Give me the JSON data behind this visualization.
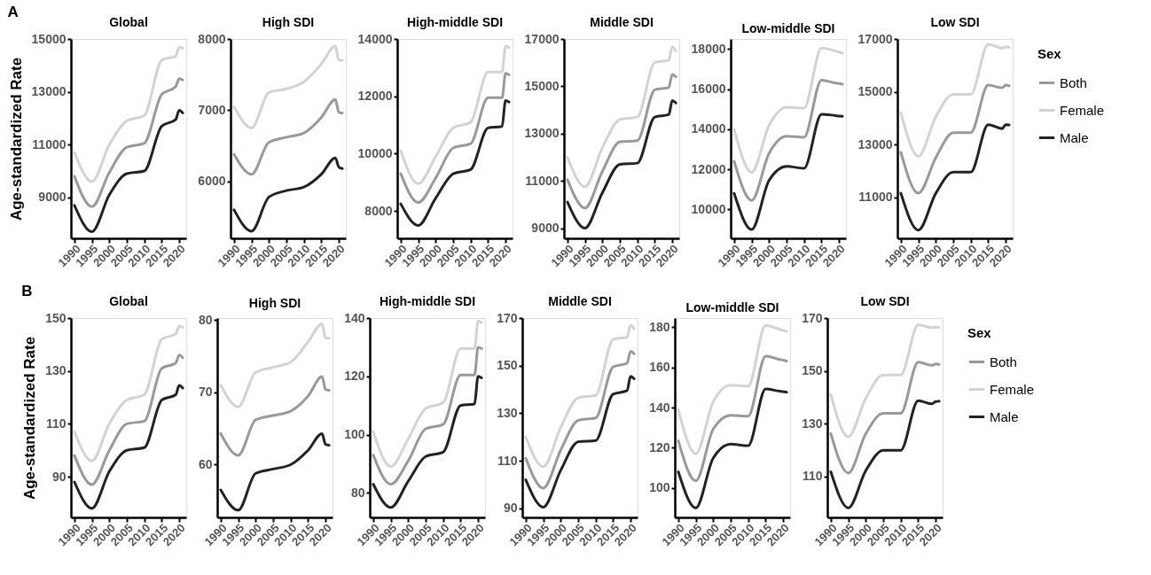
{
  "chart_data": [
    {
      "type": "line",
      "title": "Global",
      "ylabel": "Age-standardized  Rate",
      "annotations": [
        "A"
      ],
      "legend": false,
      "grid": false,
      "x": [
        1990,
        1995,
        2000,
        2005,
        2010,
        2015,
        2019,
        2020,
        2021
      ],
      "xlim": [
        1989,
        2022
      ],
      "xticks": [
        1990,
        1995,
        2000,
        2005,
        2010,
        2015,
        2020
      ],
      "ylim": [
        7450,
        15000
      ],
      "yticks": [
        9000,
        11000,
        13000,
        15000
      ],
      "series": [
        {
          "color": "#999999",
          "values": [
            9800,
            8650,
            9950,
            10900,
            11050,
            12900,
            13200,
            13500,
            13450
          ]
        },
        {
          "color": "#d3d3d3",
          "values": [
            10700,
            9600,
            11000,
            11900,
            12100,
            14200,
            14350,
            14700,
            14650
          ]
        },
        {
          "color": "#222222",
          "values": [
            8700,
            7700,
            9100,
            9900,
            10000,
            11700,
            11950,
            12300,
            12200
          ]
        }
      ]
    },
    {
      "type": "line",
      "title": "High SDI",
      "legend": false,
      "grid": false,
      "x": [
        1990,
        1995,
        2000,
        2005,
        2010,
        2015,
        2019,
        2020,
        2021
      ],
      "xlim": [
        1989,
        2022
      ],
      "xticks": [
        1990,
        1995,
        2000,
        2005,
        2010,
        2015,
        2020
      ],
      "ylim": [
        5200,
        8000
      ],
      "yticks": [
        6000,
        7000,
        8000
      ],
      "series": [
        {
          "color": "#999999",
          "values": [
            6380,
            6100,
            6550,
            6620,
            6680,
            6900,
            7150,
            6970,
            6960
          ]
        },
        {
          "color": "#d3d3d3",
          "values": [
            7050,
            6750,
            7250,
            7300,
            7400,
            7650,
            7900,
            7700,
            7700
          ]
        },
        {
          "color": "#222222",
          "values": [
            5600,
            5300,
            5780,
            5870,
            5920,
            6100,
            6330,
            6200,
            6180
          ]
        }
      ]
    },
    {
      "type": "line",
      "title": "High-middle SDI",
      "legend": false,
      "grid": false,
      "x": [
        1990,
        1995,
        2000,
        2005,
        2010,
        2015,
        2019,
        2020,
        2021
      ],
      "xlim": [
        1989,
        2022
      ],
      "xticks": [
        1990,
        1995,
        2000,
        2005,
        2010,
        2015,
        2020
      ],
      "ylim": [
        7050,
        14000
      ],
      "yticks": [
        8000,
        10000,
        12000,
        14000
      ],
      "series": [
        {
          "color": "#999999",
          "values": [
            9300,
            8300,
            9150,
            10200,
            10350,
            11950,
            11950,
            12800,
            12750
          ]
        },
        {
          "color": "#d3d3d3",
          "values": [
            10100,
            8950,
            9900,
            10900,
            11100,
            12850,
            12850,
            13750,
            13700
          ]
        },
        {
          "color": "#222222",
          "values": [
            8250,
            7500,
            8450,
            9300,
            9450,
            10900,
            10950,
            11850,
            11800
          ]
        }
      ]
    },
    {
      "type": "line",
      "title": "Middle SDI",
      "legend": false,
      "grid": false,
      "x": [
        1990,
        1995,
        2000,
        2005,
        2010,
        2015,
        2019,
        2020,
        2021
      ],
      "xlim": [
        1989,
        2022
      ],
      "xticks": [
        1990,
        1995,
        2000,
        2005,
        2010,
        2015,
        2020
      ],
      "ylim": [
        8570,
        17000
      ],
      "yticks": [
        9000,
        11000,
        13000,
        15000,
        17000
      ],
      "series": [
        {
          "color": "#999999",
          "values": [
            11050,
            9850,
            11400,
            12650,
            12700,
            14850,
            14950,
            15500,
            15400
          ]
        },
        {
          "color": "#d3d3d3",
          "values": [
            12000,
            10750,
            12400,
            13600,
            13700,
            16000,
            16100,
            16650,
            16500
          ]
        },
        {
          "color": "#222222",
          "values": [
            10100,
            9000,
            10500,
            11700,
            11750,
            13700,
            13800,
            14400,
            14300
          ]
        }
      ]
    },
    {
      "type": "line",
      "title": "Low-middle SDI",
      "legend": false,
      "grid": false,
      "x": [
        1990,
        1995,
        2000,
        2005,
        2010,
        2015,
        2019,
        2020,
        2021
      ],
      "xlim": [
        1989,
        2022
      ],
      "xticks": [
        1990,
        1995,
        2000,
        2005,
        2010,
        2015,
        2020
      ],
      "ylim": [
        8560,
        18500
      ],
      "yticks": [
        10000,
        12000,
        14000,
        16000,
        18000
      ],
      "series": [
        {
          "color": "#999999",
          "values": [
            12400,
            10450,
            12800,
            13650,
            13600,
            16450,
            16300,
            16280,
            16250
          ]
        },
        {
          "color": "#d3d3d3",
          "values": [
            14000,
            11850,
            14200,
            15100,
            15050,
            18050,
            17900,
            17850,
            17800
          ]
        },
        {
          "color": "#222222",
          "values": [
            10800,
            9000,
            11450,
            12150,
            12050,
            14750,
            14680,
            14660,
            14650
          ]
        }
      ]
    },
    {
      "type": "line",
      "title": "Low SDI",
      "legend": "right",
      "legend_title": "Sex",
      "grid": false,
      "x": [
        1990,
        1995,
        2000,
        2005,
        2010,
        2015,
        2019,
        2020,
        2021
      ],
      "xlim": [
        1989,
        2022
      ],
      "xticks": [
        1990,
        1995,
        2000,
        2005,
        2010,
        2015,
        2020
      ],
      "ylim": [
        9440,
        17000
      ],
      "yticks": [
        11000,
        13000,
        15000,
        17000
      ],
      "series": [
        {
          "name": "Both",
          "color": "#999999",
          "values": [
            12700,
            11150,
            12500,
            13450,
            13450,
            15250,
            15150,
            15250,
            15220
          ]
        },
        {
          "name": "Female",
          "color": "#d3d3d3",
          "values": [
            14200,
            12550,
            14050,
            14900,
            14900,
            16800,
            16650,
            16700,
            16680
          ]
        },
        {
          "name": "Male",
          "color": "#222222",
          "values": [
            11150,
            9750,
            11150,
            11950,
            11950,
            13750,
            13600,
            13750,
            13740
          ]
        }
      ]
    },
    {
      "type": "line",
      "title": "Global",
      "ylabel": "Age-standardized  Rate",
      "annotations": [
        "B"
      ],
      "legend": false,
      "grid": false,
      "x": [
        1990,
        1995,
        2000,
        2005,
        2010,
        2015,
        2019,
        2020,
        2021
      ],
      "xlim": [
        1989,
        2022
      ],
      "xticks": [
        1990,
        1995,
        2000,
        2005,
        2010,
        2015,
        2020
      ],
      "ylim": [
        74.6,
        150
      ],
      "yticks": [
        90,
        110,
        130,
        150
      ],
      "series": [
        {
          "color": "#999999",
          "values": [
            98,
            87,
            100,
            110,
            111,
            131,
            133,
            136,
            135
          ]
        },
        {
          "color": "#d3d3d3",
          "values": [
            107,
            96,
            110,
            119,
            121,
            142,
            144,
            147,
            146.5
          ]
        },
        {
          "color": "#222222",
          "values": [
            88,
            78,
            92,
            100,
            101,
            119,
            121,
            124.5,
            123.5
          ]
        }
      ]
    },
    {
      "type": "line",
      "title": "High SDI",
      "legend": false,
      "grid": false,
      "x": [
        1990,
        1995,
        2000,
        2005,
        2010,
        2015,
        2019,
        2020,
        2021
      ],
      "xlim": [
        1989,
        2022
      ],
      "xticks": [
        1990,
        1995,
        2000,
        2005,
        2010,
        2015,
        2020
      ],
      "ylim": [
        52.7,
        80.3
      ],
      "yticks": [
        60,
        70,
        80
      ],
      "series": [
        {
          "color": "#999999",
          "values": [
            64.3,
            61.3,
            66.2,
            66.8,
            67.4,
            69.5,
            72.2,
            70.4,
            70.3
          ]
        },
        {
          "color": "#d3d3d3",
          "values": [
            71,
            68,
            72.8,
            73.5,
            74.2,
            77,
            79.5,
            77.5,
            77.5
          ]
        },
        {
          "color": "#222222",
          "values": [
            56.5,
            53.7,
            58.8,
            59.4,
            60,
            62,
            64.3,
            62.8,
            62.7
          ]
        }
      ]
    },
    {
      "type": "line",
      "title": "High-middle SDI",
      "legend": false,
      "grid": false,
      "x": [
        1990,
        1995,
        2000,
        2005,
        2010,
        2015,
        2019,
        2020,
        2021
      ],
      "xlim": [
        1989,
        2022
      ],
      "xticks": [
        1990,
        1995,
        2000,
        2005,
        2010,
        2015,
        2020
      ],
      "ylim": [
        71.6,
        140
      ],
      "yticks": [
        80,
        100,
        120,
        140
      ],
      "series": [
        {
          "color": "#999999",
          "values": [
            93,
            83,
            91,
            102,
            103.5,
            120.5,
            120.5,
            130,
            129.5
          ]
        },
        {
          "color": "#d3d3d3",
          "values": [
            101,
            89,
            98.5,
            109,
            111,
            129.5,
            129.5,
            139,
            138.5
          ]
        },
        {
          "color": "#222222",
          "values": [
            83,
            75,
            84,
            92.5,
            94,
            110,
            110.5,
            120,
            119.5
          ]
        }
      ]
    },
    {
      "type": "line",
      "title": "Middle SDI",
      "legend": false,
      "grid": false,
      "x": [
        1990,
        1995,
        2000,
        2005,
        2010,
        2015,
        2019,
        2020,
        2021
      ],
      "xlim": [
        1989,
        2022
      ],
      "xticks": [
        1990,
        1995,
        2000,
        2005,
        2010,
        2015,
        2020
      ],
      "ylim": [
        86.2,
        170
      ],
      "yticks": [
        90,
        110,
        130,
        150,
        170
      ],
      "series": [
        {
          "color": "#999999",
          "values": [
            111,
            98.5,
            114.5,
            127,
            128,
            149.5,
            151,
            156,
            155
          ]
        },
        {
          "color": "#d3d3d3",
          "values": [
            120,
            107.5,
            124,
            136.5,
            137.5,
            161,
            162,
            167,
            165.5
          ]
        },
        {
          "color": "#222222",
          "values": [
            102,
            90.5,
            106,
            118,
            118.5,
            138,
            139.5,
            145.5,
            144.5
          ]
        }
      ]
    },
    {
      "type": "line",
      "title": "Low-middle SDI",
      "legend": false,
      "grid": false,
      "x": [
        1990,
        1995,
        2000,
        2005,
        2010,
        2015,
        2019,
        2020,
        2021
      ],
      "xlim": [
        1989,
        2022
      ],
      "xticks": [
        1990,
        1995,
        2000,
        2005,
        2010,
        2015,
        2020
      ],
      "ylim": [
        85.3,
        184.6
      ],
      "yticks": [
        100,
        120,
        140,
        160,
        180
      ],
      "series": [
        {
          "color": "#999999",
          "values": [
            123.5,
            103.5,
            129.3,
            136.2,
            135.7,
            165.6,
            164,
            163.6,
            163.2
          ]
        },
        {
          "color": "#d3d3d3",
          "values": [
            139,
            117,
            142.9,
            151.2,
            150.6,
            181,
            179,
            178.5,
            178
          ]
        },
        {
          "color": "#222222",
          "values": [
            108,
            90,
            114.9,
            121.8,
            121,
            149.3,
            148.2,
            148,
            147.7
          ]
        }
      ]
    },
    {
      "type": "line",
      "title": "Low SDI",
      "legend": "right",
      "legend_title": "Sex",
      "grid": false,
      "x": [
        1990,
        1995,
        2000,
        2005,
        2010,
        2015,
        2019,
        2020,
        2021
      ],
      "xlim": [
        1989,
        2022
      ],
      "xticks": [
        1990,
        1995,
        2000,
        2005,
        2010,
        2015,
        2020
      ],
      "ylim": [
        94.5,
        170
      ],
      "yticks": [
        110,
        130,
        150,
        170
      ],
      "series": [
        {
          "name": "Both",
          "color": "#999999",
          "values": [
            126.2,
            111.3,
            126.2,
            133.9,
            133.9,
            153.3,
            152.1,
            152.6,
            152.5
          ]
        },
        {
          "name": "Female",
          "color": "#d3d3d3",
          "values": [
            141,
            125,
            139.6,
            148.4,
            148.4,
            167.4,
            166.4,
            166.6,
            166.4
          ]
        },
        {
          "name": "Male",
          "color": "#222222",
          "values": [
            111.8,
            98.1,
            112.2,
            119.9,
            119.9,
            138.7,
            137.5,
            138.4,
            138.5
          ]
        }
      ]
    }
  ]
}
